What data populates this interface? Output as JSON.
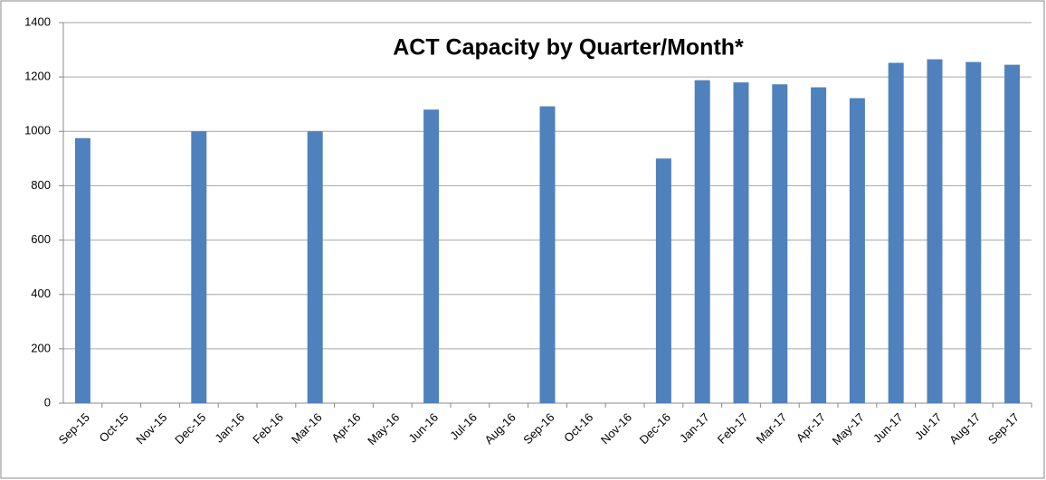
{
  "chart_data": {
    "type": "bar",
    "title": "ACT Capacity by Quarter/Month*",
    "categories": [
      "Sep-15",
      "Oct-15",
      "Nov-15",
      "Dec-15",
      "Jan-16",
      "Feb-16",
      "Mar-16",
      "Apr-16",
      "May-16",
      "Jun-16",
      "Jul-16",
      "Aug-16",
      "Sep-16",
      "Oct-16",
      "Nov-16",
      "Dec-16",
      "Jan-17",
      "Feb-17",
      "Mar-17",
      "Apr-17",
      "May-17",
      "Jun-17",
      "Jul-17",
      "Aug-17",
      "Sep-17"
    ],
    "values": [
      975,
      null,
      null,
      1000,
      null,
      null,
      1000,
      null,
      null,
      1080,
      null,
      null,
      1092,
      null,
      null,
      900,
      1188,
      1180,
      1173,
      1162,
      1122,
      1252,
      1265,
      1255,
      1245
    ],
    "color": "#4f81bd",
    "ylim": [
      0,
      1400
    ],
    "yticks": [
      0,
      200,
      400,
      600,
      800,
      1000,
      1200,
      1400
    ],
    "grid": true
  }
}
